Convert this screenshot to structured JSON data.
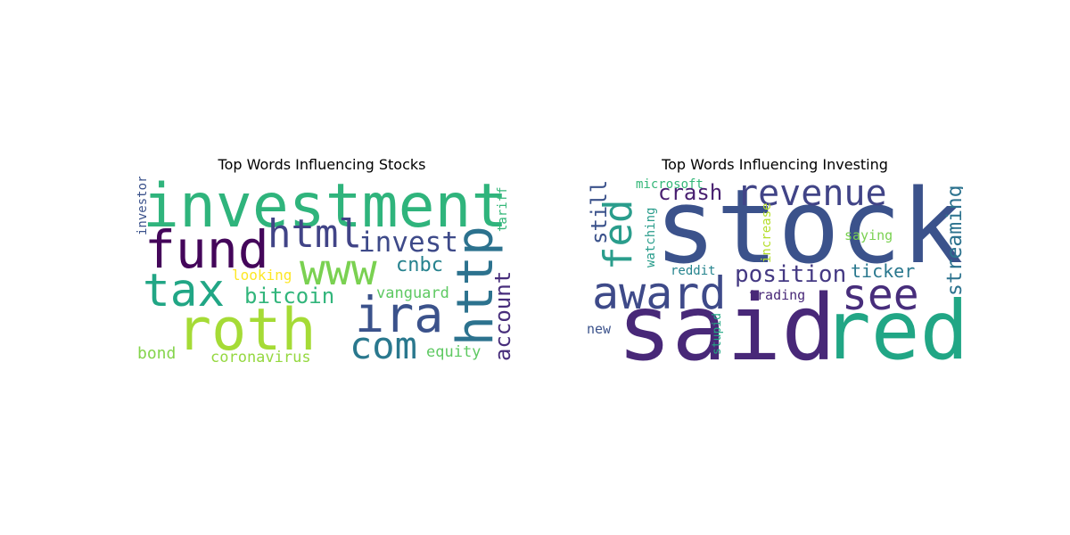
{
  "chart_data": [
    {
      "type": "wordcloud",
      "title": "Top Words Influencing Stocks",
      "words": [
        {
          "text": "investment",
          "color": "#2fb47c"
        },
        {
          "text": "fund",
          "color": "#44065a"
        },
        {
          "text": "html",
          "color": "#414487"
        },
        {
          "text": "invest",
          "color": "#3e4a89"
        },
        {
          "text": "www",
          "color": "#7ad151"
        },
        {
          "text": "http",
          "color": "#2c728e"
        },
        {
          "text": "tax",
          "color": "#21a685"
        },
        {
          "text": "cnbc",
          "color": "#26828e"
        },
        {
          "text": "bitcoin",
          "color": "#31b57b"
        },
        {
          "text": "looking",
          "color": "#fde725"
        },
        {
          "text": "vanguard",
          "color": "#5ec962"
        },
        {
          "text": "roth",
          "color": "#a5db36"
        },
        {
          "text": "ira",
          "color": "#3b528b"
        },
        {
          "text": "com",
          "color": "#2a788e"
        },
        {
          "text": "account",
          "color": "#472d7b"
        },
        {
          "text": "bond",
          "color": "#84d44b"
        },
        {
          "text": "coronavirus",
          "color": "#95d840"
        },
        {
          "text": "equity",
          "color": "#5ec962"
        },
        {
          "text": "investor",
          "color": "#3b528b"
        },
        {
          "text": "tariff",
          "color": "#35b779"
        }
      ]
    },
    {
      "type": "wordcloud",
      "title": "Top Words Influencing Investing",
      "words": [
        {
          "text": "stock",
          "color": "#3b528b"
        },
        {
          "text": "said",
          "color": "#482878"
        },
        {
          "text": "red",
          "color": "#21a685"
        },
        {
          "text": "award",
          "color": "#3e4a89"
        },
        {
          "text": "see",
          "color": "#472d7b"
        },
        {
          "text": "revenue",
          "color": "#414487"
        },
        {
          "text": "fed",
          "color": "#2a9d8c"
        },
        {
          "text": "crash",
          "color": "#481f70"
        },
        {
          "text": "position",
          "color": "#443983"
        },
        {
          "text": "ticker",
          "color": "#2a788e"
        },
        {
          "text": "streaming",
          "color": "#2c728e"
        },
        {
          "text": "still",
          "color": "#3b528b"
        },
        {
          "text": "microsoft",
          "color": "#35b779"
        },
        {
          "text": "watching",
          "color": "#2a9d8c"
        },
        {
          "text": "increase",
          "color": "#b5de2b"
        },
        {
          "text": "saying",
          "color": "#7ad151"
        },
        {
          "text": "reddit",
          "color": "#25848e"
        },
        {
          "text": "trading",
          "color": "#482878"
        },
        {
          "text": "new",
          "color": "#3b528b"
        },
        {
          "text": "stupid",
          "color": "#22a884"
        }
      ]
    }
  ]
}
